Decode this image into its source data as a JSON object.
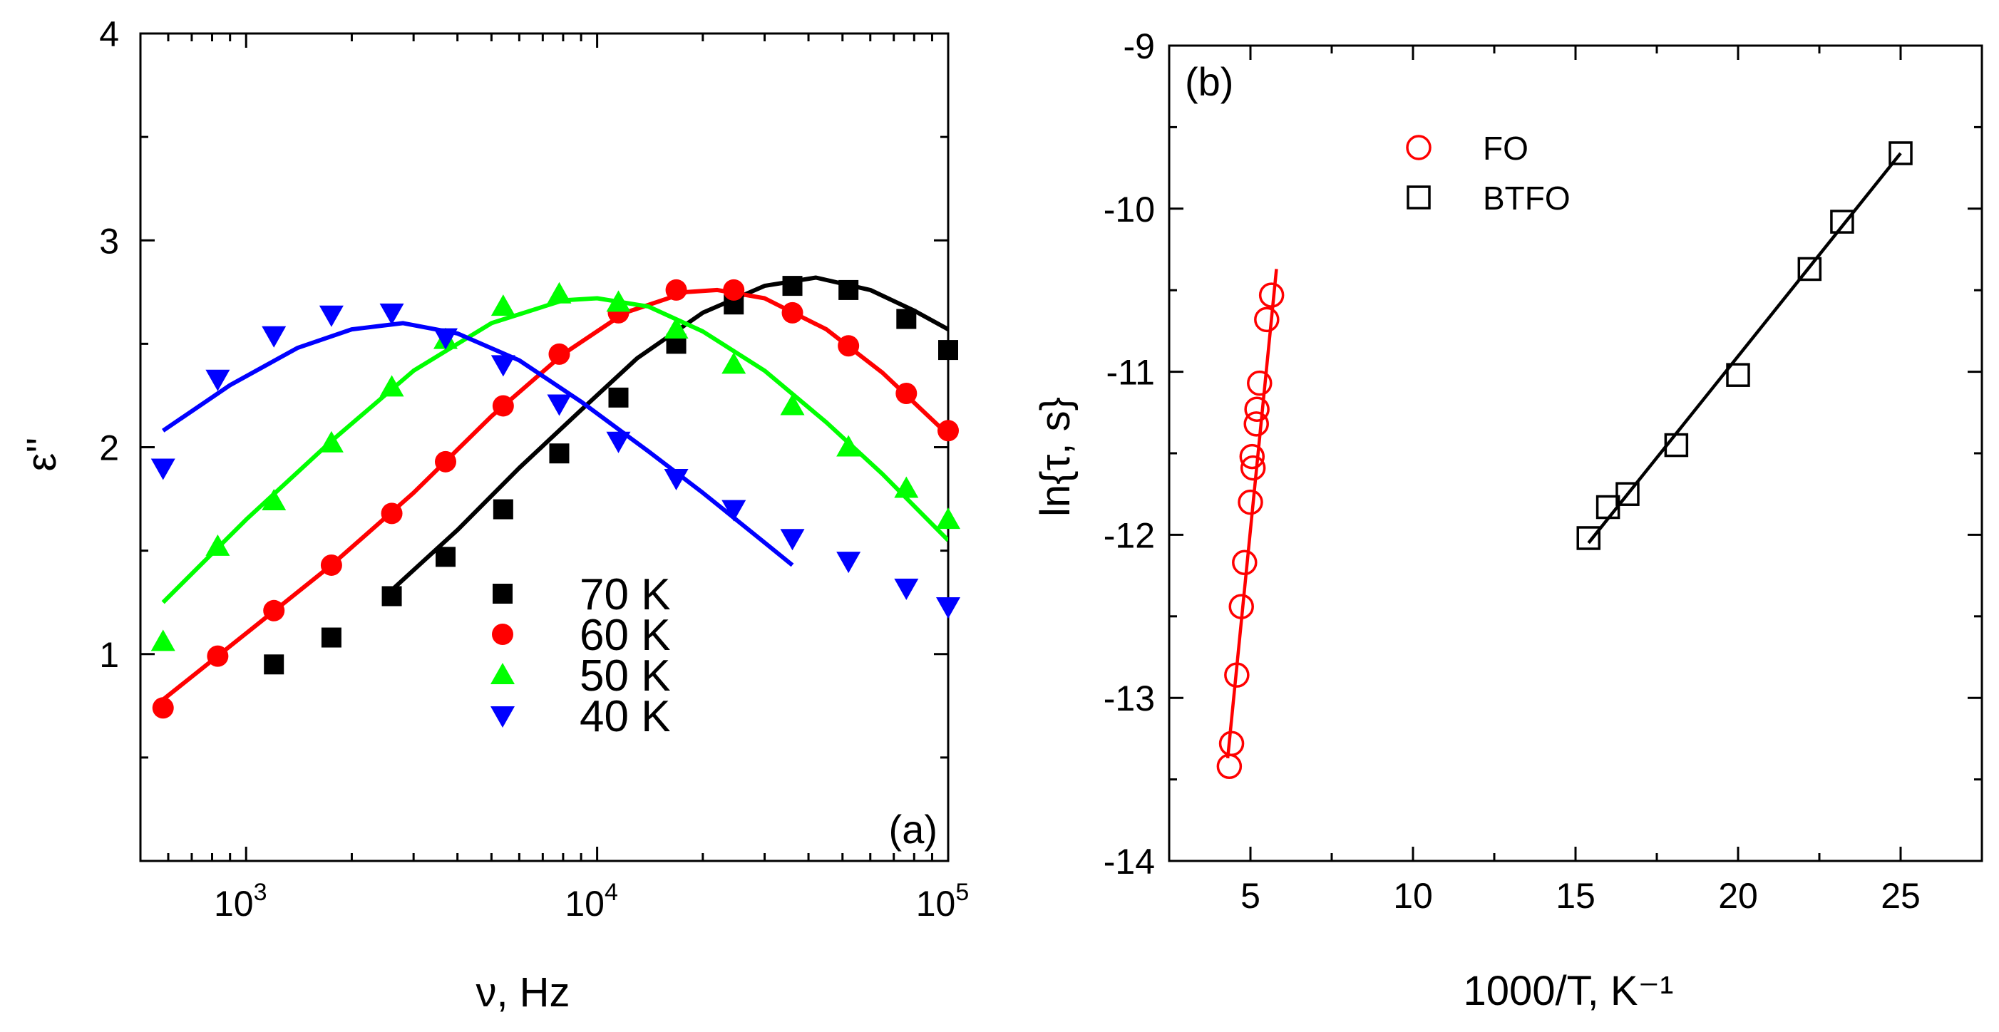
{
  "chart_data": [
    {
      "panel_label": "(a)",
      "type": "scatter",
      "x_scale": "log",
      "xlabel": "ν, Hz",
      "ylabel": "ε''",
      "xlim": [
        500,
        100000
      ],
      "ylim": [
        0,
        4
      ],
      "x_tick_values": [
        1000,
        10000,
        100000
      ],
      "x_tick_labels": [
        {
          "base": "10",
          "exp": "3"
        },
        {
          "base": "10",
          "exp": "4"
        },
        {
          "base": "10",
          "exp": "5"
        }
      ],
      "y_tick_labels": [
        "1",
        "2",
        "3",
        "4"
      ],
      "y_tick_values": [
        1,
        2,
        3,
        4
      ],
      "legend_position": "bottom-center",
      "series": [
        {
          "name": "70 K",
          "color": "#000000",
          "marker": "square-filled",
          "points": [
            [
              1200,
              0.95
            ],
            [
              1750,
              1.08
            ],
            [
              2600,
              1.28
            ],
            [
              3700,
              1.47
            ],
            [
              5400,
              1.7
            ],
            [
              7800,
              1.97
            ],
            [
              11500,
              2.24
            ],
            [
              16800,
              2.5
            ],
            [
              24500,
              2.69
            ],
            [
              36000,
              2.78
            ],
            [
              52000,
              2.76
            ],
            [
              76000,
              2.62
            ],
            [
              100000,
              2.47
            ]
          ],
          "fit": [
            [
              2600,
              1.31
            ],
            [
              4000,
              1.6
            ],
            [
              6000,
              1.9
            ],
            [
              9000,
              2.18
            ],
            [
              13000,
              2.43
            ],
            [
              20000,
              2.65
            ],
            [
              30000,
              2.78
            ],
            [
              42000,
              2.82
            ],
            [
              60000,
              2.76
            ],
            [
              80000,
              2.66
            ],
            [
              100000,
              2.57
            ]
          ]
        },
        {
          "name": "60 K",
          "color": "#ff0000",
          "marker": "circle-filled",
          "points": [
            [
              580,
              0.74
            ],
            [
              830,
              0.99
            ],
            [
              1200,
              1.21
            ],
            [
              1750,
              1.43
            ],
            [
              2600,
              1.68
            ],
            [
              3700,
              1.93
            ],
            [
              5400,
              2.2
            ],
            [
              7800,
              2.45
            ],
            [
              11500,
              2.65
            ],
            [
              16800,
              2.76
            ],
            [
              24500,
              2.76
            ],
            [
              36000,
              2.65
            ],
            [
              52000,
              2.49
            ],
            [
              76000,
              2.26
            ],
            [
              100000,
              2.08
            ]
          ],
          "fit": [
            [
              580,
              0.78
            ],
            [
              1000,
              1.1
            ],
            [
              1750,
              1.43
            ],
            [
              3000,
              1.78
            ],
            [
              5000,
              2.15
            ],
            [
              8000,
              2.45
            ],
            [
              12000,
              2.65
            ],
            [
              18000,
              2.75
            ],
            [
              22000,
              2.76
            ],
            [
              30000,
              2.72
            ],
            [
              45000,
              2.57
            ],
            [
              65000,
              2.36
            ],
            [
              100000,
              2.06
            ]
          ]
        },
        {
          "name": "50 K",
          "color": "#00ff00",
          "marker": "triangle-up-filled",
          "points": [
            [
              580,
              1.06
            ],
            [
              830,
              1.52
            ],
            [
              1200,
              1.74
            ],
            [
              1750,
              2.02
            ],
            [
              2600,
              2.29
            ],
            [
              3700,
              2.52
            ],
            [
              5400,
              2.68
            ],
            [
              7800,
              2.74
            ],
            [
              11500,
              2.7
            ],
            [
              16800,
              2.57
            ],
            [
              24500,
              2.4
            ],
            [
              36000,
              2.2
            ],
            [
              52000,
              2.0
            ],
            [
              76000,
              1.8
            ],
            [
              100000,
              1.65
            ]
          ],
          "fit": [
            [
              580,
              1.25
            ],
            [
              1000,
              1.65
            ],
            [
              1750,
              2.03
            ],
            [
              3000,
              2.37
            ],
            [
              5000,
              2.6
            ],
            [
              8000,
              2.71
            ],
            [
              10000,
              2.72
            ],
            [
              14000,
              2.68
            ],
            [
              20000,
              2.56
            ],
            [
              30000,
              2.37
            ],
            [
              45000,
              2.12
            ],
            [
              65000,
              1.87
            ],
            [
              100000,
              1.55
            ]
          ]
        },
        {
          "name": "40 K",
          "color": "#0000ff",
          "marker": "triangle-down-filled",
          "points": [
            [
              580,
              1.9
            ],
            [
              830,
              2.33
            ],
            [
              1200,
              2.54
            ],
            [
              1750,
              2.64
            ],
            [
              2600,
              2.65
            ],
            [
              3700,
              2.53
            ],
            [
              5400,
              2.4
            ],
            [
              7800,
              2.21
            ],
            [
              11500,
              2.03
            ],
            [
              16800,
              1.85
            ],
            [
              24500,
              1.7
            ],
            [
              36000,
              1.56
            ],
            [
              52000,
              1.45
            ],
            [
              76000,
              1.32
            ],
            [
              100000,
              1.23
            ]
          ],
          "fit": [
            [
              580,
              2.08
            ],
            [
              900,
              2.3
            ],
            [
              1400,
              2.48
            ],
            [
              2000,
              2.57
            ],
            [
              2800,
              2.6
            ],
            [
              4000,
              2.55
            ],
            [
              6000,
              2.42
            ],
            [
              9000,
              2.22
            ],
            [
              14000,
              1.98
            ],
            [
              20000,
              1.78
            ],
            [
              28000,
              1.58
            ],
            [
              36000,
              1.43
            ]
          ]
        }
      ]
    },
    {
      "panel_label": "(b)",
      "type": "scatter",
      "xlabel": "1000/T, K⁻¹",
      "ylabel": "ln{τ, s}",
      "xlim": [
        2.5,
        27.5
      ],
      "ylim": [
        -14,
        -9
      ],
      "x_tick_labels": [
        "5",
        "10",
        "15",
        "20",
        "25"
      ],
      "x_tick_values": [
        5,
        10,
        15,
        20,
        25
      ],
      "y_tick_labels": [
        "-14",
        "-13",
        "-12",
        "-11",
        "-10",
        "-9"
      ],
      "y_tick_values": [
        -14,
        -13,
        -12,
        -11,
        -10,
        -9
      ],
      "legend_position": "top-left",
      "series": [
        {
          "name": "FO",
          "color": "#ff0000",
          "marker": "circle-open",
          "points": [
            [
              4.35,
              -13.42
            ],
            [
              4.42,
              -13.28
            ],
            [
              4.58,
              -12.86
            ],
            [
              4.72,
              -12.44
            ],
            [
              4.82,
              -12.17
            ],
            [
              5.0,
              -11.8
            ],
            [
              5.08,
              -11.59
            ],
            [
              5.05,
              -11.52
            ],
            [
              5.18,
              -11.32
            ],
            [
              5.2,
              -11.23
            ],
            [
              5.28,
              -11.07
            ],
            [
              5.5,
              -10.68
            ],
            [
              5.65,
              -10.53
            ]
          ],
          "fit": [
            [
              4.3,
              -13.37
            ],
            [
              5.8,
              -10.37
            ]
          ]
        },
        {
          "name": "BTFO",
          "color": "#000000",
          "marker": "square-open",
          "points": [
            [
              15.4,
              -12.02
            ],
            [
              16.0,
              -11.83
            ],
            [
              16.6,
              -11.75
            ],
            [
              18.1,
              -11.45
            ],
            [
              20.0,
              -11.02
            ],
            [
              22.2,
              -10.37
            ],
            [
              23.2,
              -10.08
            ],
            [
              25.0,
              -9.66
            ]
          ],
          "fit": [
            [
              15.4,
              -12.05
            ],
            [
              25.0,
              -9.66
            ]
          ]
        }
      ]
    }
  ]
}
